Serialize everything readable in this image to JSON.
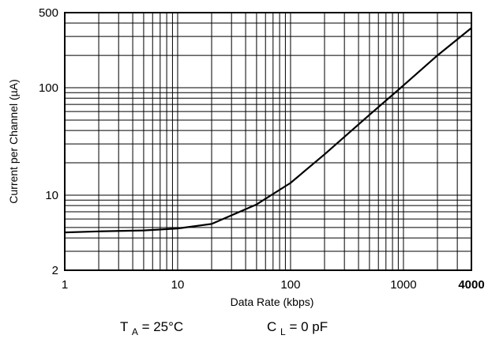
{
  "chart_data": {
    "type": "line",
    "title": "",
    "xlabel": "Data Rate (kbps)",
    "ylabel": "Current per Channel (µA)",
    "x_scale": "log",
    "y_scale": "log",
    "xlim": [
      1,
      4000
    ],
    "ylim": [
      2,
      500
    ],
    "grid": true,
    "x_tick_labels": [
      {
        "value": 1,
        "label": "1",
        "bold": false
      },
      {
        "value": 10,
        "label": "10",
        "bold": false
      },
      {
        "value": 100,
        "label": "100",
        "bold": false
      },
      {
        "value": 1000,
        "label": "1000",
        "bold": false
      },
      {
        "value": 4000,
        "label": "4000",
        "bold": true
      }
    ],
    "y_tick_labels": [
      {
        "value": 2,
        "label": "2"
      },
      {
        "value": 10,
        "label": "10"
      },
      {
        "value": 100,
        "label": "100"
      },
      {
        "value": 500,
        "label": "500"
      }
    ],
    "series": [
      {
        "x": [
          1,
          2,
          5,
          10,
          20,
          50,
          100,
          200,
          500,
          1000,
          2000,
          4000
        ],
        "y": [
          4.5,
          4.6,
          4.7,
          4.9,
          5.4,
          8.2,
          13,
          24,
          56,
          105,
          200,
          360
        ]
      }
    ],
    "colors": {
      "line": "#000000",
      "grid": "#000000",
      "frame": "#000000"
    }
  },
  "conditions": {
    "ta": {
      "main": "T",
      "sub": "A",
      "rest": " = 25°C"
    },
    "cl": {
      "main": "C",
      "sub": "L",
      "rest": " = 0 pF"
    }
  }
}
